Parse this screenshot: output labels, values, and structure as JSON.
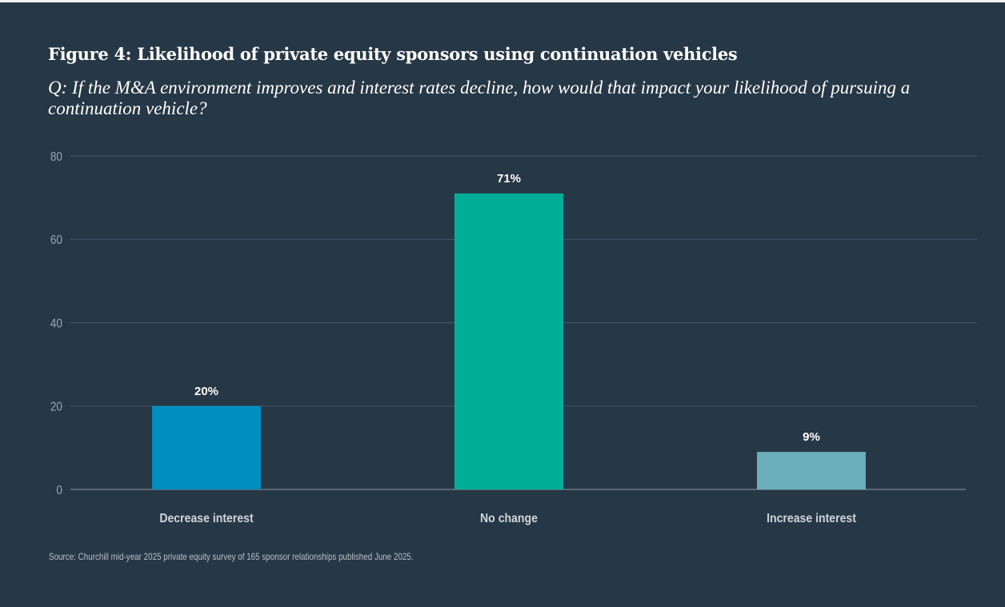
{
  "chart_data": {
    "type": "bar",
    "title": "Figure 4: Likelihood of private equity sponsors using continuation vehicles",
    "subtitle": "Q: If the M&A environment improves and interest rates decline, how would that impact your likelihood of pursuing a continuation vehicle?",
    "categories": [
      "Decrease interest",
      "No change",
      "Increase interest"
    ],
    "values": [
      20,
      71,
      9
    ],
    "data_labels": [
      "20%",
      "71%",
      "9%"
    ],
    "colors": [
      "#008fc0",
      "#00ae98",
      "#6aadbb"
    ],
    "ylim": [
      0,
      80
    ],
    "yticks": [
      0,
      20,
      40,
      60,
      80
    ],
    "xlabel": "",
    "ylabel": "",
    "grid": true,
    "source": "Source: Churchill mid-year 2025 private equity survey of 165 sponsor relationships published June 2025."
  }
}
